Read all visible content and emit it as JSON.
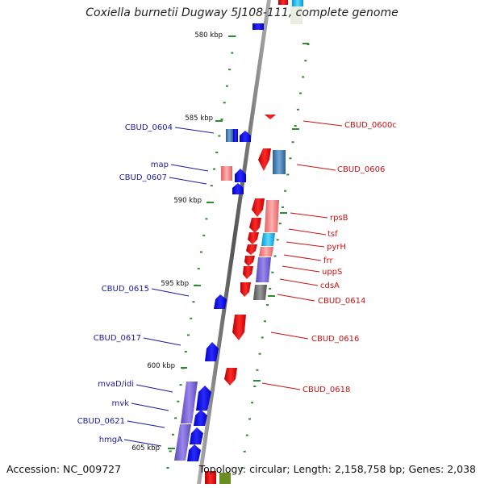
{
  "title": "Coxiella burnetii Dugway 5J108-111, complete genome",
  "footer": {
    "accession": "Accession: NC_009727",
    "summary": "Topology: circular; Length: 2,158,758 bp; Genes: 2,038"
  },
  "ticks": [
    {
      "label": "580 kbp",
      "kbp": 580
    },
    {
      "label": "585 kbp",
      "kbp": 585
    },
    {
      "label": "590 kbp",
      "kbp": 590
    },
    {
      "label": "595 kbp",
      "kbp": 595
    },
    {
      "label": "600 kbp",
      "kbp": 600
    },
    {
      "label": "605 kbp",
      "kbp": 605
    }
  ],
  "colors": {
    "reverse_gene": "#1a1aff",
    "forward_gene": "#ee1111",
    "label_reverse": "#1a1aa0",
    "label_forward": "#cc1111",
    "backbone": "#808080",
    "tick": "#2e8b2e",
    "cog_purple": "#7b68d8",
    "cog_pink": "#f08080",
    "cog_steel": "#4682b4",
    "cog_cyan": "#00bfff",
    "cog_grey": "#707070"
  },
  "genes_left": [
    {
      "label": "CBUD_0604"
    },
    {
      "label": "map"
    },
    {
      "label": "CBUD_0607"
    },
    {
      "label": "CBUD_0615"
    },
    {
      "label": "CBUD_0617"
    },
    {
      "label": "mvaD/idi"
    },
    {
      "label": "mvk"
    },
    {
      "label": "CBUD_0621"
    },
    {
      "label": "hmgA"
    }
  ],
  "genes_right": [
    {
      "label": "CBUD_0600c"
    },
    {
      "label": "CBUD_0606"
    },
    {
      "label": "rpsB"
    },
    {
      "label": "tsf"
    },
    {
      "label": "pyrH"
    },
    {
      "label": "frr"
    },
    {
      "label": "uppS"
    },
    {
      "label": "cdsA"
    },
    {
      "label": "CBUD_0614"
    },
    {
      "label": "CBUD_0616"
    },
    {
      "label": "CBUD_0618"
    }
  ]
}
